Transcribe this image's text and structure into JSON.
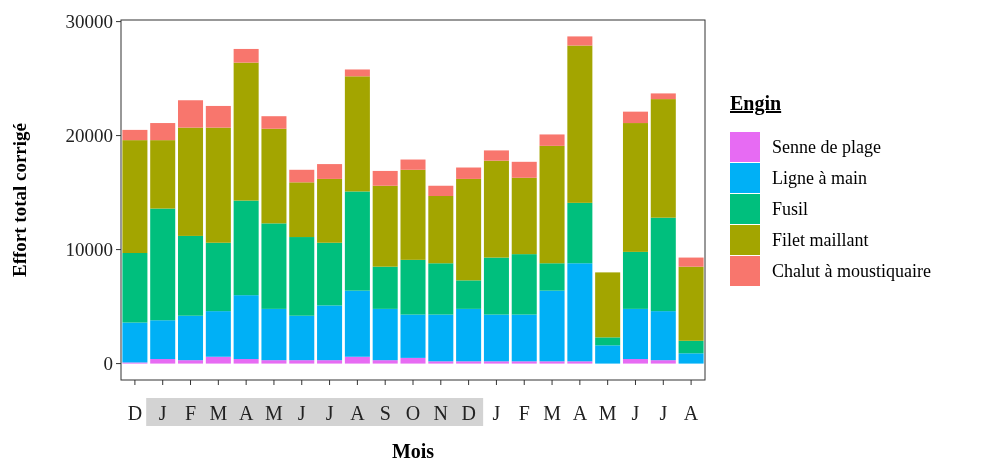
{
  "chart_data": {
    "type": "bar",
    "stacked": true,
    "xlabel": "Mois",
    "ylabel": "Effort total corrigé",
    "legend_title": "Engin",
    "legend": "right",
    "categories": [
      "D",
      "J",
      "F",
      "M",
      "A",
      "M",
      "J",
      "J",
      "A",
      "S",
      "O",
      "N",
      "D",
      "J",
      "F",
      "M",
      "A",
      "M",
      "J",
      "J",
      "A"
    ],
    "ylim": [
      -1440,
      30140
    ],
    "yticks": [
      0,
      10000,
      20000,
      30000
    ],
    "series": [
      {
        "name": "Senne de plage",
        "color": "#e76bf3",
        "values": [
          100,
          400,
          300,
          600,
          400,
          300,
          300,
          300,
          600,
          300,
          500,
          200,
          200,
          200,
          200,
          200,
          200,
          0,
          400,
          300,
          0
        ]
      },
      {
        "name": "Ligne à main",
        "color": "#00b0f6",
        "values": [
          3500,
          3400,
          3900,
          4000,
          5600,
          4500,
          3900,
          4800,
          5800,
          4500,
          3800,
          4100,
          4600,
          4100,
          4100,
          6200,
          8600,
          1600,
          4400,
          4300,
          900
        ]
      },
      {
        "name": "Fusil",
        "color": "#00bf7d",
        "values": [
          6100,
          9800,
          7000,
          6000,
          8300,
          7500,
          6900,
          5500,
          8700,
          3700,
          4800,
          4500,
          2500,
          5000,
          5300,
          2400,
          5300,
          700,
          5000,
          8200,
          1100
        ]
      },
      {
        "name": "Filet maillant",
        "color": "#a3a500",
        "values": [
          9900,
          6000,
          9500,
          10100,
          12100,
          8300,
          4800,
          5600,
          10100,
          7100,
          7900,
          5900,
          8900,
          8500,
          6700,
          10300,
          13800,
          5700,
          11300,
          10400,
          6500
        ]
      },
      {
        "name": "Chalut à moustiquaire",
        "color": "#f8766d",
        "values": [
          900,
          1500,
          2400,
          1900,
          1200,
          1100,
          1100,
          1300,
          600,
          1300,
          900,
          900,
          1000,
          900,
          1400,
          1000,
          800,
          0,
          1000,
          500,
          800
        ]
      }
    ]
  }
}
